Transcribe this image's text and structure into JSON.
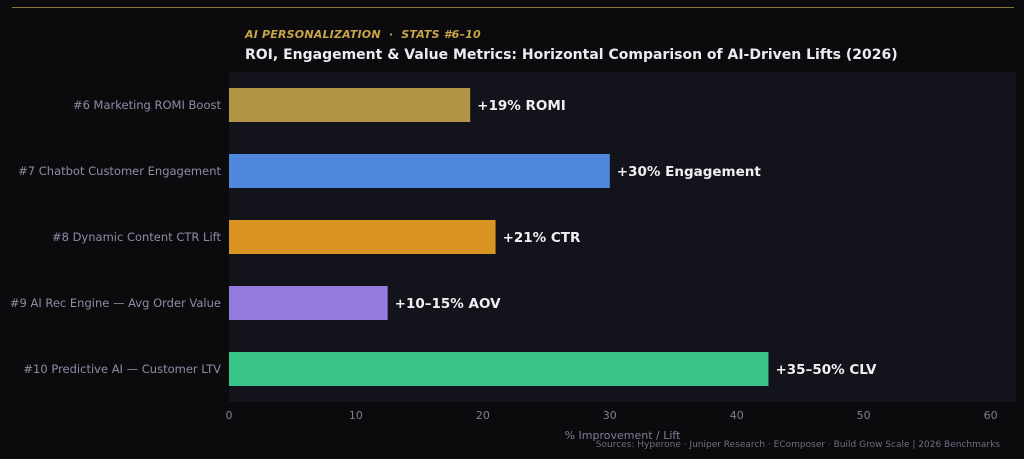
{
  "header": {
    "kicker": "AI PERSONALIZATION  ·  STATS #6–10",
    "title": "ROI, Engagement & Value Metrics: Horizontal Comparison of AI-Driven Lifts (2026)"
  },
  "footer": {
    "sources": "Sources: Hyperone · Juniper Research · EComposer · Build Grow Scale  |  2026 Benchmarks"
  },
  "colors": {
    "background": "#0b0b0e",
    "plot_background": "#13131b",
    "tick_label": "#7e7e96",
    "category_label": "#8d8da6",
    "data_label": "#f0eff3",
    "accent_gold": "#c9a54a"
  },
  "chart_data": {
    "type": "bar",
    "orientation": "horizontal",
    "categories": [
      "#6  Marketing ROMI Boost",
      "#7  Chatbot Customer Engagement",
      "#8  Dynamic Content CTR Lift",
      "#9  AI Rec Engine — Avg Order Value",
      "#10 Predictive AI — Customer LTV"
    ],
    "values": [
      19,
      30,
      21,
      12.5,
      42.5
    ],
    "data_labels": [
      "+19% ROMI",
      "+30% Engagement",
      "+21% CTR",
      "+10–15% AOV",
      "+35–50% CLV"
    ],
    "bar_colors": [
      "#b39545",
      "#4f88dd",
      "#d99422",
      "#9479df",
      "#39c48a"
    ],
    "xlabel": "% Improvement / Lift",
    "ylabel": "",
    "xlim": [
      0,
      62
    ],
    "xticks": [
      0,
      10,
      20,
      30,
      40,
      50,
      60
    ],
    "grid": false,
    "legend": "none"
  }
}
